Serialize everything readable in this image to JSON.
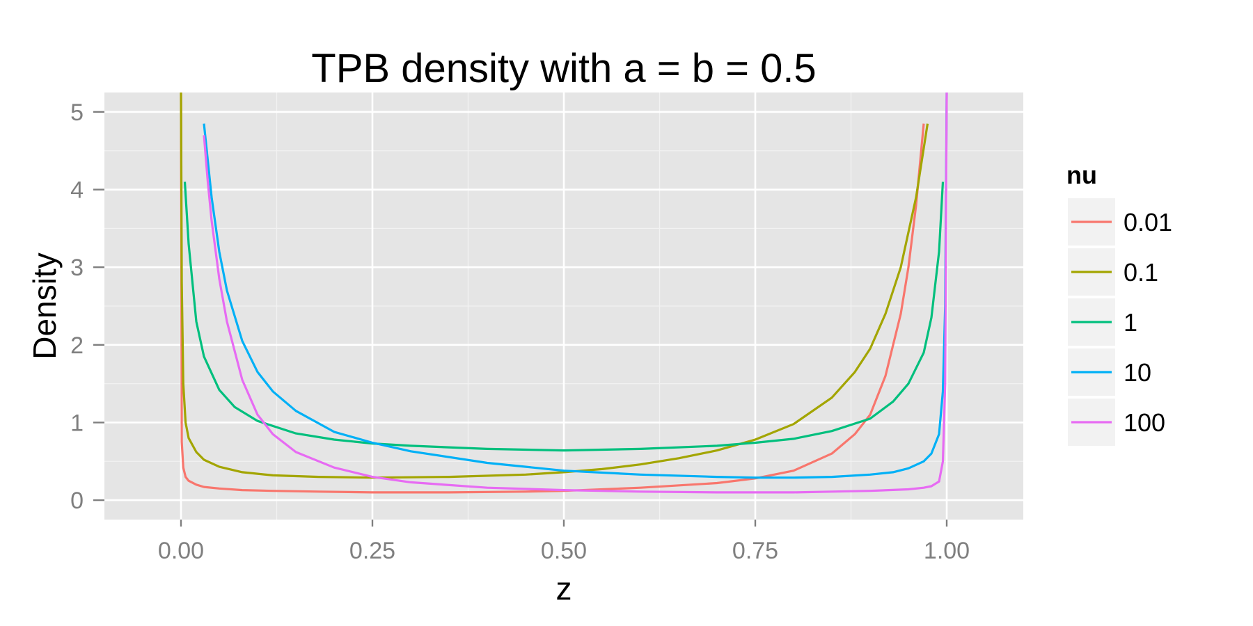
{
  "chart_data": {
    "type": "line",
    "title": "TPB density with a = b = 0.5",
    "xlabel": "z",
    "ylabel": "Density",
    "xlim": [
      -0.1,
      1.1
    ],
    "ylim": [
      -0.25,
      5.25
    ],
    "x_ticks": [
      0.0,
      0.25,
      0.5,
      0.75,
      1.0
    ],
    "x_tick_labels": [
      "0.00",
      "0.25",
      "0.50",
      "0.75",
      "1.00"
    ],
    "y_ticks": [
      0,
      1,
      2,
      3,
      4,
      5
    ],
    "y_tick_labels": [
      "0",
      "1",
      "2",
      "3",
      "4",
      "5"
    ],
    "grid": true,
    "background_color": "#e5e5e5",
    "grid_color": "#ffffff",
    "legend": {
      "title": "nu",
      "position": "right"
    },
    "series": [
      {
        "name": "0.01",
        "color": "#f8766d",
        "x": [
          0.0,
          0.001,
          0.003,
          0.006,
          0.01,
          0.02,
          0.03,
          0.05,
          0.08,
          0.12,
          0.18,
          0.25,
          0.35,
          0.45,
          0.5,
          0.6,
          0.7,
          0.75,
          0.8,
          0.85,
          0.88,
          0.9,
          0.92,
          0.94,
          0.95,
          0.96,
          0.97
        ],
        "y": [
          5.3,
          0.75,
          0.42,
          0.3,
          0.25,
          0.2,
          0.17,
          0.15,
          0.13,
          0.12,
          0.11,
          0.1,
          0.1,
          0.11,
          0.12,
          0.16,
          0.22,
          0.28,
          0.38,
          0.6,
          0.85,
          1.1,
          1.6,
          2.4,
          3.0,
          3.8,
          4.85
        ]
      },
      {
        "name": "0.1",
        "color": "#a3a500",
        "x": [
          0.0,
          0.001,
          0.003,
          0.006,
          0.01,
          0.02,
          0.03,
          0.05,
          0.08,
          0.12,
          0.18,
          0.25,
          0.35,
          0.45,
          0.5,
          0.55,
          0.6,
          0.65,
          0.7,
          0.75,
          0.8,
          0.85,
          0.88,
          0.9,
          0.92,
          0.94,
          0.96,
          0.975
        ],
        "y": [
          5.3,
          2.8,
          1.5,
          1.0,
          0.8,
          0.62,
          0.52,
          0.43,
          0.36,
          0.32,
          0.3,
          0.29,
          0.3,
          0.33,
          0.36,
          0.4,
          0.46,
          0.54,
          0.64,
          0.78,
          0.98,
          1.32,
          1.65,
          1.95,
          2.4,
          3.0,
          3.9,
          4.85
        ]
      },
      {
        "name": "1",
        "color": "#00bf7d",
        "x": [
          0.005,
          0.01,
          0.02,
          0.03,
          0.05,
          0.07,
          0.1,
          0.15,
          0.2,
          0.25,
          0.3,
          0.4,
          0.5,
          0.6,
          0.7,
          0.75,
          0.8,
          0.85,
          0.9,
          0.93,
          0.95,
          0.97,
          0.98,
          0.99,
          0.995
        ],
        "y": [
          4.1,
          3.3,
          2.3,
          1.85,
          1.42,
          1.2,
          1.02,
          0.86,
          0.78,
          0.73,
          0.7,
          0.66,
          0.64,
          0.66,
          0.7,
          0.74,
          0.79,
          0.89,
          1.05,
          1.27,
          1.5,
          1.9,
          2.35,
          3.2,
          4.1
        ]
      },
      {
        "name": "10",
        "color": "#00b0f6",
        "x": [
          0.03,
          0.04,
          0.05,
          0.06,
          0.08,
          0.1,
          0.12,
          0.15,
          0.2,
          0.25,
          0.3,
          0.4,
          0.5,
          0.6,
          0.7,
          0.75,
          0.8,
          0.85,
          0.9,
          0.93,
          0.95,
          0.97,
          0.98,
          0.99,
          0.995,
          0.998,
          1.0
        ],
        "y": [
          4.85,
          3.9,
          3.2,
          2.7,
          2.05,
          1.65,
          1.4,
          1.15,
          0.88,
          0.74,
          0.63,
          0.48,
          0.38,
          0.33,
          0.3,
          0.29,
          0.29,
          0.3,
          0.33,
          0.36,
          0.41,
          0.5,
          0.6,
          0.85,
          1.4,
          2.5,
          5.25
        ]
      },
      {
        "name": "100",
        "color": "#e76bf3",
        "x": [
          0.03,
          0.035,
          0.04,
          0.05,
          0.06,
          0.08,
          0.1,
          0.12,
          0.15,
          0.2,
          0.25,
          0.3,
          0.4,
          0.5,
          0.6,
          0.7,
          0.75,
          0.8,
          0.85,
          0.9,
          0.95,
          0.97,
          0.98,
          0.99,
          0.995,
          0.998,
          1.0
        ],
        "y": [
          4.7,
          4.1,
          3.6,
          2.85,
          2.3,
          1.55,
          1.1,
          0.85,
          0.62,
          0.42,
          0.3,
          0.23,
          0.16,
          0.13,
          0.11,
          0.1,
          0.1,
          0.1,
          0.11,
          0.12,
          0.14,
          0.16,
          0.18,
          0.24,
          0.5,
          1.5,
          5.25
        ]
      }
    ]
  }
}
